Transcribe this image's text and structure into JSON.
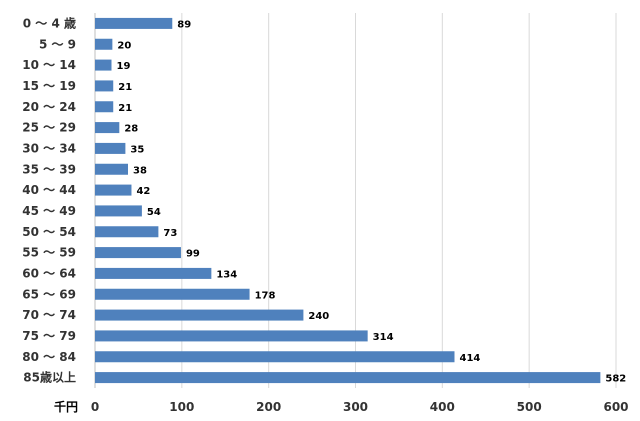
{
  "chart_data": {
    "type": "bar",
    "orientation": "horizontal",
    "categories": [
      "0 ～ 4 歳",
      "5 ～ 9",
      "10 ～ 14",
      "15 ～ 19",
      "20 ～ 24",
      "25 ～ 29",
      "30 ～ 34",
      "35 ～ 39",
      "40 ～ 44",
      "45 ～ 49",
      "50 ～ 54",
      "55 ～ 59",
      "60 ～ 64",
      "65 ～ 69",
      "70 ～ 74",
      "75 ～ 79",
      "80 ～ 84",
      "85歳以上"
    ],
    "values": [
      89,
      20,
      19,
      21,
      21,
      28,
      35,
      38,
      42,
      54,
      73,
      99,
      134,
      178,
      240,
      314,
      414,
      582
    ],
    "x_unit_label": "千円",
    "x_ticks": [
      "0",
      "100",
      "200",
      "300",
      "400",
      "500",
      "600"
    ],
    "xlim": [
      0,
      600
    ],
    "grid": true,
    "bar_color": "#4f81bd",
    "data_labels": true,
    "legend": false
  }
}
